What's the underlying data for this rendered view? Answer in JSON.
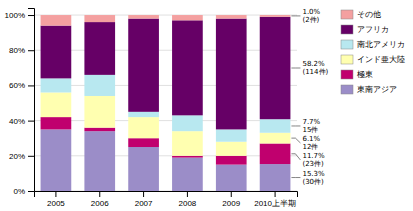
{
  "chart_data": {
    "type": "bar",
    "stacked": true,
    "categories": [
      "2005",
      "2006",
      "2007",
      "2008",
      "2009",
      "2010上半期"
    ],
    "series": [
      {
        "name": "東南アジア",
        "color": "#9b8dc8",
        "values": [
          35,
          34,
          25,
          19,
          15,
          15.3
        ],
        "value_labels": [
          null,
          null,
          null,
          null,
          null,
          "15.3%\n(30件)"
        ]
      },
      {
        "name": "極東",
        "color": "#c0006e",
        "values": [
          7,
          2,
          5,
          1,
          5,
          11.7
        ],
        "value_labels": [
          null,
          null,
          null,
          null,
          null,
          "11.7%\n(23件)"
        ]
      },
      {
        "name": "インド亜大陸",
        "color": "#ffffb0",
        "values": [
          14,
          18,
          12,
          14,
          8,
          6.1
        ],
        "value_labels": [
          null,
          null,
          null,
          null,
          null,
          "6.1%\n12件"
        ]
      },
      {
        "name": "南北アメリカ",
        "color": "#b8e8f0",
        "values": [
          8,
          12,
          3,
          9,
          7,
          7.7
        ],
        "value_labels": [
          null,
          null,
          null,
          null,
          null,
          "7.7%\n15件"
        ]
      },
      {
        "name": "アフリカ",
        "color": "#660066",
        "values": [
          30,
          30,
          53,
          54,
          63,
          58.2
        ],
        "value_labels": [
          null,
          null,
          null,
          null,
          null,
          "58.2%\n(114件)"
        ]
      },
      {
        "name": "その他",
        "color": "#f4a0a0",
        "values": [
          6,
          4,
          2,
          3,
          2,
          1.0
        ],
        "value_labels": [
          null,
          null,
          null,
          null,
          null,
          "1.0%\n(2件)"
        ]
      }
    ],
    "ylim": [
      0,
      104
    ],
    "yticks": [
      {
        "value": 0,
        "label": "0%"
      },
      {
        "value": 20,
        "label": "20%"
      },
      {
        "value": 40,
        "label": "40%"
      },
      {
        "value": 60,
        "label": "60%"
      },
      {
        "value": 80,
        "label": "80%"
      },
      {
        "value": 100,
        "label": "100%"
      }
    ],
    "grid": true,
    "legend": "right"
  }
}
